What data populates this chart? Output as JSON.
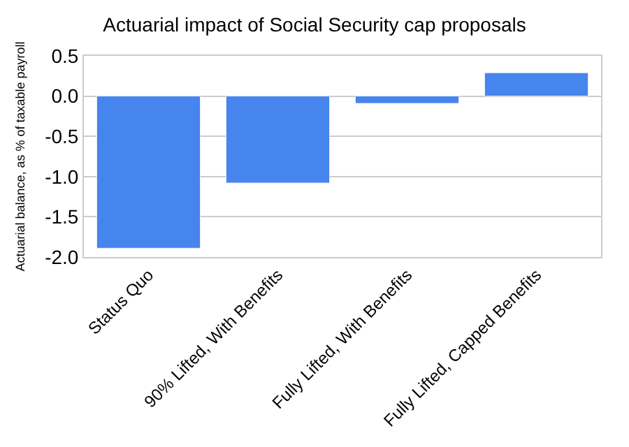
{
  "chart_data": {
    "type": "bar",
    "title": "Actuarial impact of Social Security cap proposals",
    "ylabel": "Actuarial balance, as % of taxable payroll",
    "categories": [
      "Status Quo",
      "90% Lifted, With Benefits",
      "Fully Lifted, With Benefits",
      "Fully Lifted, Capped Benefits"
    ],
    "values": [
      -1.89,
      -1.08,
      -0.09,
      0.29
    ],
    "color": "#4684ee",
    "ylim": [
      -2.0,
      0.5
    ],
    "yticks": [
      {
        "value": -2,
        "label": "-2.0"
      },
      {
        "value": -1.5,
        "label": "-1.5"
      },
      {
        "value": -1,
        "label": "-1.0"
      },
      {
        "value": -0.5,
        "label": "-0.5"
      },
      {
        "value": 0,
        "label": "0.0"
      },
      {
        "value": 0.5,
        "label": "0.5"
      }
    ],
    "grid": "y"
  }
}
